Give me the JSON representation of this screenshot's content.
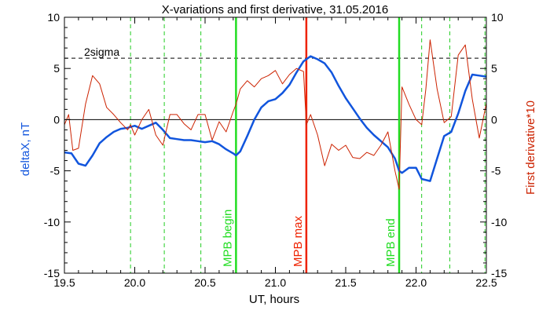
{
  "chart_data": {
    "type": "line",
    "title": "X-variations and first derivative, 31.05.2016",
    "xlabel": "UT, hours",
    "ylabel_left": "deltaX, nT",
    "ylabel_right": "First derivative*10",
    "xlim": [
      19.5,
      22.5
    ],
    "ylim": [
      -15,
      10
    ],
    "x_ticks": [
      19.5,
      20.0,
      20.5,
      21.0,
      21.5,
      22.0,
      22.5
    ],
    "x_tick_labels": [
      "19.5",
      "20.0",
      "20.5",
      "21.0",
      "21.5",
      "22.0",
      "22.5"
    ],
    "y_ticks": [
      -15,
      -10,
      -5,
      0,
      5,
      10
    ],
    "y_tick_labels": [
      "-15",
      "-10",
      "-5",
      "0",
      "5",
      "10"
    ],
    "threshold": {
      "label": "2sigma",
      "value": 6
    },
    "zero_line": 0,
    "markers": [
      {
        "label": "MPB begin",
        "x": 20.72,
        "color": "#22dd22"
      },
      {
        "label": "MPB max",
        "x": 21.22,
        "color": "#ee2200"
      },
      {
        "label": "MPB end",
        "x": 21.88,
        "color": "#22dd22"
      }
    ],
    "dashed_lines": {
      "color": "#22cc22",
      "x": [
        19.97,
        20.21,
        20.47,
        22.04,
        22.24,
        22.49
      ]
    },
    "series": [
      {
        "color": "#1155dd",
        "x": [
          19.5,
          19.55,
          19.6,
          19.65,
          19.7,
          19.75,
          19.8,
          19.85,
          19.9,
          19.95,
          20.0,
          20.05,
          20.1,
          20.15,
          20.2,
          20.25,
          20.3,
          20.35,
          20.4,
          20.45,
          20.5,
          20.55,
          20.6,
          20.65,
          20.7,
          20.72,
          20.75,
          20.8,
          20.85,
          20.9,
          20.95,
          21.0,
          21.05,
          21.1,
          21.15,
          21.2,
          21.25,
          21.3,
          21.35,
          21.4,
          21.45,
          21.5,
          21.55,
          21.6,
          21.65,
          21.7,
          21.75,
          21.8,
          21.85,
          21.88,
          21.9,
          21.95,
          22.0,
          22.04,
          22.1,
          22.15,
          22.2,
          22.25,
          22.3,
          22.35,
          22.4,
          22.45,
          22.5
        ],
        "values": [
          -3.2,
          -3.3,
          -4.3,
          -4.5,
          -3.5,
          -2.3,
          -1.7,
          -1.2,
          -0.9,
          -0.8,
          -0.6,
          -0.9,
          -0.6,
          -0.3,
          -1.0,
          -1.8,
          -1.9,
          -2.0,
          -2.0,
          -2.1,
          -2.2,
          -2.1,
          -2.4,
          -2.9,
          -3.3,
          -3.5,
          -3.1,
          -1.6,
          0.0,
          1.2,
          1.8,
          2.0,
          2.6,
          3.4,
          4.6,
          5.7,
          6.2,
          5.9,
          5.5,
          4.6,
          3.3,
          2.1,
          1.1,
          0.1,
          -0.8,
          -1.5,
          -2.1,
          -2.7,
          -3.8,
          -5.0,
          -5.2,
          -4.7,
          -4.7,
          -5.8,
          -6.0,
          -3.8,
          -1.6,
          -1.2,
          0.6,
          2.8,
          4.4,
          4.3,
          4.2
        ]
      },
      {
        "color": "#cc2200",
        "x": [
          19.5,
          19.53,
          19.56,
          19.6,
          19.65,
          19.7,
          19.75,
          19.8,
          19.85,
          19.9,
          19.95,
          19.97,
          20.0,
          20.05,
          20.1,
          20.15,
          20.2,
          20.25,
          20.3,
          20.35,
          20.4,
          20.45,
          20.5,
          20.55,
          20.6,
          20.65,
          20.7,
          20.72,
          20.75,
          20.8,
          20.85,
          20.9,
          20.95,
          21.0,
          21.05,
          21.1,
          21.15,
          21.2,
          21.22,
          21.25,
          21.3,
          21.35,
          21.4,
          21.45,
          21.5,
          21.55,
          21.6,
          21.65,
          21.7,
          21.75,
          21.8,
          21.85,
          21.88,
          21.9,
          21.95,
          22.0,
          22.04,
          22.07,
          22.1,
          22.15,
          22.2,
          22.25,
          22.3,
          22.35,
          22.4,
          22.45,
          22.5
        ],
        "values": [
          -0.5,
          0.5,
          -3.0,
          -2.8,
          1.5,
          4.3,
          3.5,
          1.2,
          0.5,
          -0.3,
          -1.0,
          -0.5,
          -1.5,
          0.0,
          1.0,
          -1.5,
          -2.5,
          0.5,
          0.5,
          -0.4,
          -1.0,
          0.5,
          0.5,
          -2.0,
          -0.2,
          -1.2,
          0.8,
          1.5,
          3.0,
          3.8,
          3.2,
          4.0,
          4.3,
          4.8,
          3.5,
          4.4,
          5.0,
          4.7,
          -0.5,
          0.5,
          -1.5,
          -4.5,
          -2.4,
          -3.0,
          -2.5,
          -3.7,
          -3.8,
          -3.2,
          -3.5,
          -2.5,
          -1.2,
          -5.0,
          -6.8,
          3.2,
          1.5,
          0.0,
          -0.5,
          3.0,
          7.8,
          3.0,
          -0.3,
          0.3,
          6.3,
          7.3,
          2.0,
          -1.8,
          1.6
        ]
      }
    ]
  }
}
